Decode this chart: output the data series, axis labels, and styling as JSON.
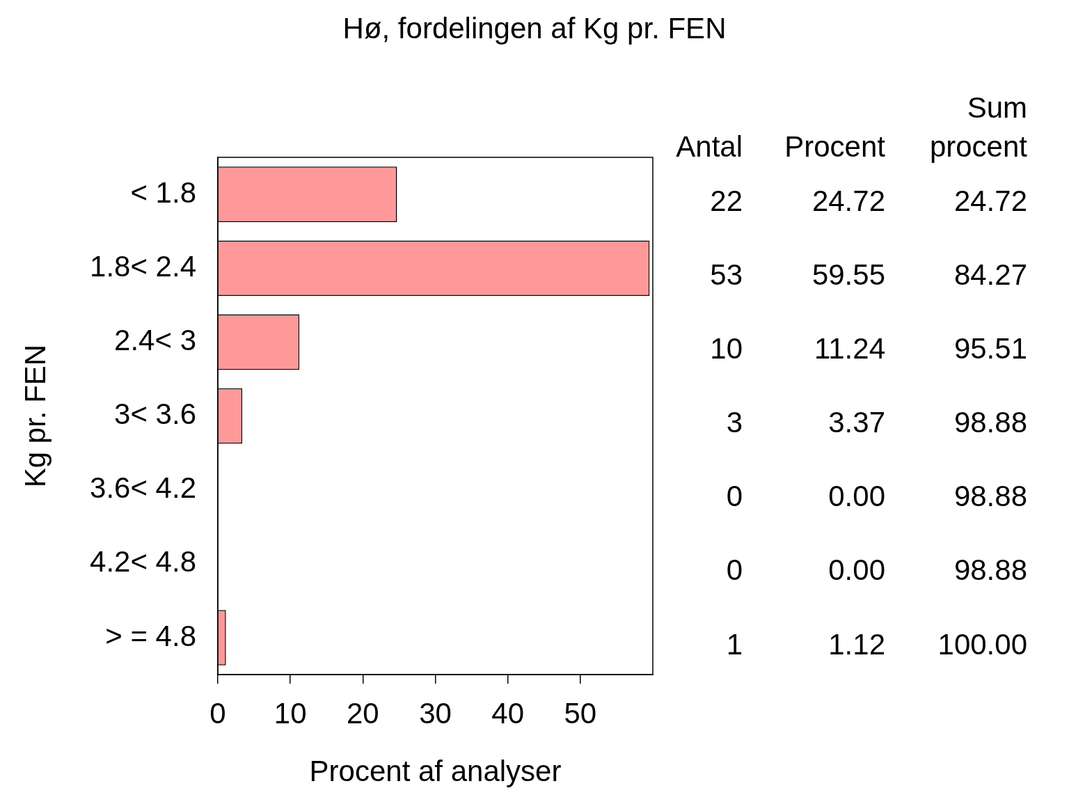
{
  "chart_data": {
    "type": "bar",
    "orientation": "horizontal",
    "title": "Hø, fordelingen af Kg pr. FEN",
    "xlabel": "Procent af analyser",
    "ylabel": "Kg pr. FEN",
    "categories": [
      "< 1.8",
      "1.8< 2.4",
      "2.4< 3",
      "3< 3.6",
      "3.6< 4.2",
      "4.2< 4.8",
      "> = 4.8"
    ],
    "values": [
      24.72,
      59.55,
      11.24,
      3.37,
      0,
      0,
      1.12
    ],
    "value_labels": [
      "24.72",
      "59.55",
      "11.24",
      "3.37",
      "0.00",
      "0.00",
      "1.12"
    ],
    "color": "#ff9999",
    "xlim": [
      0,
      60
    ],
    "xticks": [
      0,
      10,
      20,
      30,
      40,
      50
    ],
    "annotations": [
      "Antal",
      "Procent",
      "Sum procent",
      "22",
      "53",
      "10",
      "3",
      "0",
      "0",
      "1",
      "24.72",
      "84.27",
      "95.51",
      "98.88",
      "98.88",
      "98.88",
      "100.00"
    ]
  }
}
